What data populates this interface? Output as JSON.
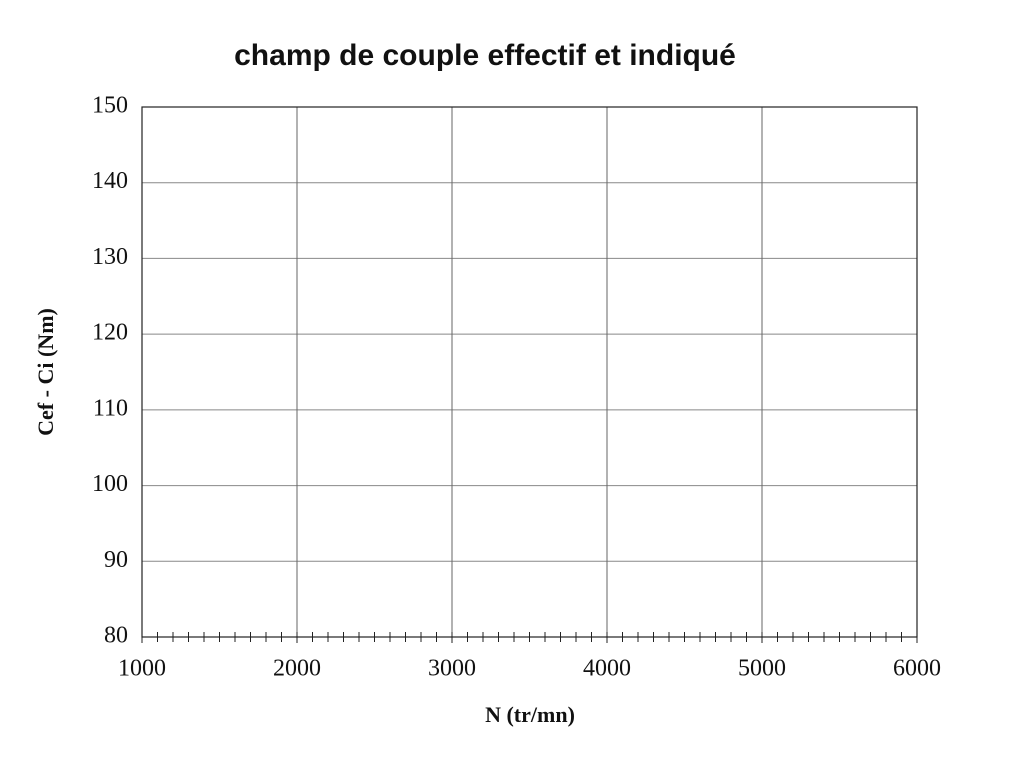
{
  "chart_data": {
    "type": "line",
    "title": "champ de couple effectif et indiqué",
    "x_label": "N (tr/mn)",
    "y_label": "Cef - Ci (Nm)",
    "xlim": [
      1000,
      6000
    ],
    "xticks": [
      1000,
      2000,
      3000,
      4000,
      5000,
      6000
    ],
    "ylim": [
      80,
      150
    ],
    "yticks": [
      80,
      90,
      100,
      110,
      120,
      130,
      140,
      150
    ],
    "grid": true
  }
}
